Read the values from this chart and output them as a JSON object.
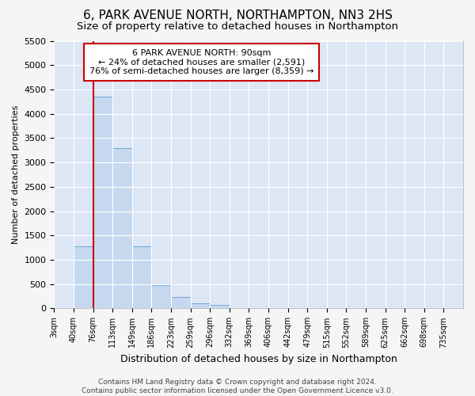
{
  "title": "6, PARK AVENUE NORTH, NORTHAMPTON, NN3 2HS",
  "subtitle": "Size of property relative to detached houses in Northampton",
  "xlabel": "Distribution of detached houses by size in Northampton",
  "ylabel": "Number of detached properties",
  "bin_labels": [
    "3sqm",
    "40sqm",
    "76sqm",
    "113sqm",
    "149sqm",
    "186sqm",
    "223sqm",
    "259sqm",
    "296sqm",
    "332sqm",
    "369sqm",
    "406sqm",
    "442sqm",
    "479sqm",
    "515sqm",
    "552sqm",
    "589sqm",
    "625sqm",
    "662sqm",
    "698sqm",
    "735sqm"
  ],
  "bar_values": [
    0,
    1280,
    4350,
    3300,
    1280,
    480,
    240,
    100,
    75,
    0,
    0,
    0,
    0,
    0,
    0,
    0,
    0,
    0,
    0,
    0,
    0
  ],
  "bar_color": "#c5d8f0",
  "bar_edgecolor": "#6fa8d4",
  "vline_x_index": 2,
  "vline_color": "#cc0000",
  "annotation_line1": "6 PARK AVENUE NORTH: 90sqm",
  "annotation_line2": "← 24% of detached houses are smaller (2,591)",
  "annotation_line3": "76% of semi-detached houses are larger (8,359) →",
  "annotation_box_color": "#ffffff",
  "annotation_box_edgecolor": "#cc0000",
  "ylim": [
    0,
    5500
  ],
  "yticks": [
    0,
    500,
    1000,
    1500,
    2000,
    2500,
    3000,
    3500,
    4000,
    4500,
    5000,
    5500
  ],
  "footer": "Contains HM Land Registry data © Crown copyright and database right 2024.\nContains public sector information licensed under the Open Government Licence v3.0.",
  "fig_bg_color": "#f5f5f5",
  "plot_bg_color": "#dce6f5",
  "title_fontsize": 11,
  "subtitle_fontsize": 9.5,
  "ylabel_fontsize": 8,
  "xlabel_fontsize": 9
}
